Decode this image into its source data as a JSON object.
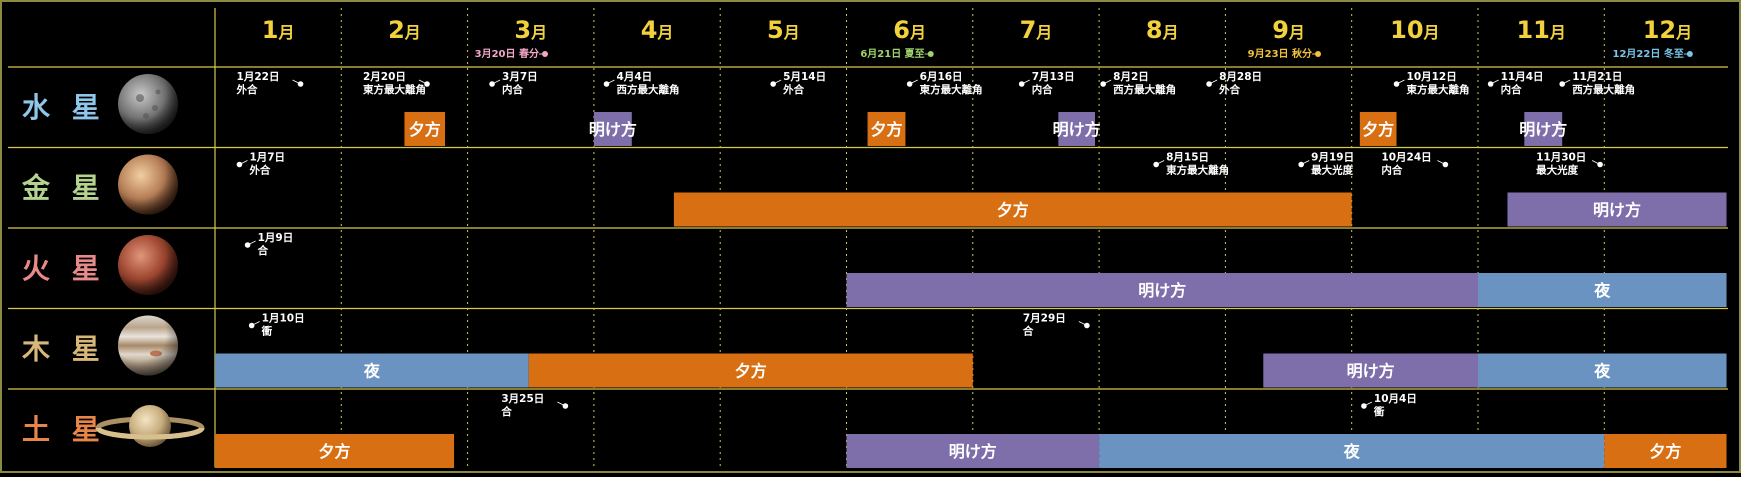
{
  "chart_data": {
    "type": "timeline",
    "months": [
      "1",
      "2",
      "3",
      "4",
      "5",
      "6",
      "7",
      "8",
      "9",
      "10",
      "11",
      "12"
    ],
    "month_suffix": "月",
    "seasons": [
      {
        "label": "3月20日 春分",
        "date": "03-20",
        "color": "#f4a6c8"
      },
      {
        "label": "6月21日 夏至",
        "date": "06-21",
        "color": "#9ed46b"
      },
      {
        "label": "9月23日 秋分",
        "date": "09-23",
        "color": "#f2c23a"
      },
      {
        "label": "12月22日 冬至",
        "date": "12-22",
        "color": "#7ac6ea"
      }
    ],
    "colors": {
      "夕方": "#d86f12",
      "明け方": "#7e6fab",
      "夜": "#6a93c2",
      "grid": "#d6c94a",
      "frame": "#8a8a40"
    },
    "planets": [
      {
        "name": "水 星",
        "name_color": "#8fc6ea",
        "icon": "mercury-icon",
        "events": [
          {
            "date": "01-22",
            "lines": [
              "1月22日",
              "外合"
            ],
            "side": "left"
          },
          {
            "date": "02-20",
            "lines": [
              "2月20日",
              "東方最大離角"
            ],
            "side": "left"
          },
          {
            "date": "03-07",
            "lines": [
              "3月7日",
              "内合"
            ],
            "side": "right"
          },
          {
            "date": "04-04",
            "lines": [
              "4月4日",
              "西方最大離角"
            ],
            "side": "right"
          },
          {
            "date": "05-14",
            "lines": [
              "5月14日",
              "外合"
            ],
            "side": "right"
          },
          {
            "date": "06-16",
            "lines": [
              "6月16日",
              "東方最大離角"
            ],
            "side": "right"
          },
          {
            "date": "07-13",
            "lines": [
              "7月13日",
              "内合"
            ],
            "side": "right"
          },
          {
            "date": "08-02",
            "lines": [
              "8月2日",
              "西方最大離角"
            ],
            "side": "right"
          },
          {
            "date": "08-28",
            "lines": [
              "8月28日",
              "外合"
            ],
            "side": "right"
          },
          {
            "date": "10-12",
            "lines": [
              "10月12日",
              "東方最大離角"
            ],
            "side": "right"
          },
          {
            "date": "11-04",
            "lines": [
              "11月4日",
              "内合"
            ],
            "side": "right"
          },
          {
            "date": "11-21",
            "lines": [
              "11月21日",
              "西方最大離角"
            ],
            "side": "right"
          }
        ],
        "bars": [
          {
            "start": "02-15",
            "end": "02-24",
            "label": "夕方",
            "type": "夕方"
          },
          {
            "start": "04-01",
            "end": "04-10",
            "label": "明け方",
            "type": "明け方"
          },
          {
            "start": "06-06",
            "end": "06-15",
            "label": "夕方",
            "type": "夕方"
          },
          {
            "start": "07-22",
            "end": "07-31",
            "label": "明け方",
            "type": "明け方"
          },
          {
            "start": "10-03",
            "end": "10-12",
            "label": "夕方",
            "type": "夕方"
          },
          {
            "start": "11-12",
            "end": "11-21",
            "label": "明け方",
            "type": "明け方"
          }
        ]
      },
      {
        "name": "金 星",
        "name_color": "#b3d38e",
        "icon": "venus-icon",
        "events": [
          {
            "date": "01-07",
            "lines": [
              "1月7日",
              "外合"
            ],
            "side": "right"
          },
          {
            "date": "08-15",
            "lines": [
              "8月15日",
              "東方最大離角"
            ],
            "side": "right"
          },
          {
            "date": "09-19",
            "lines": [
              "9月19日",
              "最大光度"
            ],
            "side": "right"
          },
          {
            "date": "10-24",
            "lines": [
              "10月24日",
              "内合"
            ],
            "side": "left"
          },
          {
            "date": "11-30",
            "lines": [
              "11月30日",
              "最大光度"
            ],
            "side": "left"
          }
        ],
        "bars": [
          {
            "start": "04-20",
            "end": "10-01",
            "label": "夕方",
            "type": "夕方"
          },
          {
            "start": "11-08",
            "end": "12-31",
            "label": "明け方",
            "type": "明け方"
          }
        ]
      },
      {
        "name": "火 星",
        "name_color": "#e98a8a",
        "icon": "mars-icon",
        "events": [
          {
            "date": "01-09",
            "lines": [
              "1月9日",
              "合"
            ],
            "side": "right"
          }
        ],
        "bars": [
          {
            "start": "06-01",
            "end": "11-01",
            "label": "明け方",
            "type": "明け方"
          },
          {
            "start": "11-01",
            "end": "12-31",
            "label": "夜",
            "type": "夜"
          }
        ]
      },
      {
        "name": "木 星",
        "name_color": "#d8b878",
        "icon": "jupiter-icon",
        "events": [
          {
            "date": "01-10",
            "lines": [
              "1月10日",
              "衝"
            ],
            "side": "right"
          },
          {
            "date": "07-29",
            "lines": [
              "7月29日",
              "合"
            ],
            "side": "left"
          }
        ],
        "bars": [
          {
            "start": "01-01",
            "end": "03-16",
            "label": "夜",
            "type": "夜"
          },
          {
            "start": "03-16",
            "end": "07-01",
            "label": "夕方",
            "type": "夕方"
          },
          {
            "start": "09-10",
            "end": "11-01",
            "label": "明け方",
            "type": "明け方"
          },
          {
            "start": "11-01",
            "end": "12-31",
            "label": "夜",
            "type": "夜"
          }
        ]
      },
      {
        "name": "土 星",
        "name_color": "#e8864a",
        "icon": "saturn-icon",
        "events": [
          {
            "date": "03-25",
            "lines": [
              "3月25日",
              "合"
            ],
            "side": "left"
          },
          {
            "date": "10-04",
            "lines": [
              "10月4日",
              "衝"
            ],
            "side": "right"
          }
        ],
        "bars": [
          {
            "start": "01-01",
            "end": "02-26",
            "label": "夕方",
            "type": "夕方"
          },
          {
            "start": "06-01",
            "end": "08-01",
            "label": "明け方",
            "type": "明け方"
          },
          {
            "start": "08-01",
            "end": "12-01",
            "label": "夜",
            "type": "夜"
          },
          {
            "start": "12-01",
            "end": "12-31",
            "label": "夕方",
            "type": "夕方"
          }
        ]
      }
    ]
  }
}
